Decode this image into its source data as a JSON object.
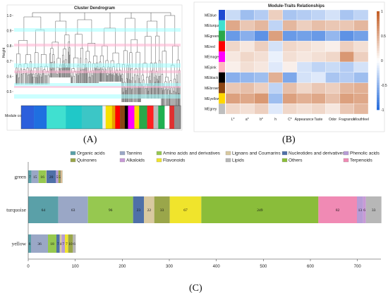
{
  "panels": {
    "a_label": "(A)",
    "b_label": "(B)",
    "c_label": "(C)"
  },
  "dendrogram": {
    "title": "Cluster Dendrogram",
    "ylabel": "Height",
    "yticks": [
      "1.0",
      "0.9",
      "0.8",
      "0.7",
      "0.6",
      "0.5"
    ],
    "colors_label": "Module colors",
    "color_bar": [
      {
        "color": "#2c5fdc",
        "w": 0.08
      },
      {
        "color": "#1f6fe0",
        "w": 0.08
      },
      {
        "color": "#40e0d0",
        "w": 0.12
      },
      {
        "color": "#20c8c8",
        "w": 0.1
      },
      {
        "color": "#3cc6c6",
        "w": 0.13
      },
      {
        "color": "#eeeeee",
        "w": 0.02
      },
      {
        "color": "#f6e000",
        "w": 0.04
      },
      {
        "color": "#e8a000",
        "w": 0.02
      },
      {
        "color": "#ff0000",
        "w": 0.03
      },
      {
        "color": "#8b4513",
        "w": 0.03
      },
      {
        "color": "#000000",
        "w": 0.02
      },
      {
        "color": "#ff00ff",
        "w": 0.04
      },
      {
        "color": "#ffd700",
        "w": 0.03
      },
      {
        "color": "#2aa84a",
        "w": 0.05
      },
      {
        "color": "#ff2020",
        "w": 0.04
      },
      {
        "color": "#bbbbbb",
        "w": 0.03
      },
      {
        "color": "#20b050",
        "w": 0.04
      },
      {
        "color": "#ffffff",
        "w": 0.03
      },
      {
        "color": "#e03030",
        "w": 0.03
      },
      {
        "color": "#909090",
        "w": 0.04
      }
    ]
  },
  "heatmap": {
    "title": "Module-Traits Relationships",
    "rows": [
      "MEblue",
      "MEturquoise",
      "MEgreen",
      "MEred",
      "MEmagenta",
      "MEpink",
      "MEblack",
      "MEbrown",
      "MEyellow",
      "MEgrey"
    ],
    "row_colors": [
      "#1e4bd2",
      "#40e0d0",
      "#2aa84a",
      "#ff0000",
      "#ff00ff",
      "#ffb6c1",
      "#000000",
      "#8b4513",
      "#ffd700",
      "#bebebe"
    ],
    "cols": [
      "L*",
      "a*",
      "b*",
      "h",
      "C*",
      "Appearance",
      "Taste",
      "Odor",
      "Fragrance",
      "Mouthfeel"
    ],
    "values": [
      [
        -0.25,
        -0.45,
        -0.35,
        0.3,
        -0.4,
        -0.35,
        -0.3,
        -0.2,
        -0.4,
        -0.3
      ],
      [
        0.55,
        0.35,
        0.45,
        -0.3,
        0.45,
        0.3,
        0.4,
        0.35,
        0.35,
        0.45
      ],
      [
        -0.7,
        -0.55,
        -0.75,
        0.6,
        -0.7,
        -0.65,
        -0.7,
        -0.5,
        -0.75,
        -0.65
      ],
      [
        0.25,
        0.15,
        0.3,
        -0.2,
        0.25,
        0.2,
        0.15,
        0.1,
        0.3,
        0.2
      ],
      [
        0.15,
        0.25,
        0.2,
        -0.1,
        0.2,
        0.15,
        0.2,
        0.25,
        0.65,
        0.3
      ],
      [
        0.1,
        0.2,
        0.15,
        -0.15,
        0.1,
        -0.2,
        -0.3,
        -0.25,
        -0.35,
        -0.2
      ],
      [
        -0.55,
        -0.5,
        -0.45,
        0.5,
        -0.6,
        -0.2,
        -0.15,
        -0.4,
        -0.35,
        -0.45
      ],
      [
        0.35,
        0.4,
        0.3,
        -0.3,
        0.4,
        0.25,
        0.35,
        0.3,
        0.45,
        0.5
      ],
      [
        0.6,
        0.55,
        0.65,
        -0.45,
        0.6,
        0.5,
        0.55,
        0.4,
        0.6,
        0.55
      ],
      [
        0.25,
        0.2,
        0.3,
        -0.15,
        0.25,
        0.2,
        0.25,
        0.15,
        0.35,
        0.45
      ]
    ],
    "colorbar_ticks": [
      "1",
      "0.5",
      "0",
      "-0.5",
      "-1"
    ]
  },
  "chart_data": {
    "type": "bar",
    "orientation": "horizontal",
    "stacked": true,
    "categories": [
      "green",
      "turquoise",
      "yellow"
    ],
    "legend": [
      {
        "name": "Organic acids",
        "color": "#5aa0a8"
      },
      {
        "name": "Tannins",
        "color": "#9aa7c6"
      },
      {
        "name": "Amino acids and derivatives",
        "color": "#96c850"
      },
      {
        "name": "Lignans and Coumarins",
        "color": "#d9c9a0"
      },
      {
        "name": "Nucleotides and derivatives",
        "color": "#4f70a8"
      },
      {
        "name": "Phenolic acids",
        "color": "#b79cd6"
      },
      {
        "name": "Quinones",
        "color": "#9aa64a"
      },
      {
        "name": "Alkaloids",
        "color": "#c89ad6"
      },
      {
        "name": "Flavonoids",
        "color": "#f0e42c"
      },
      {
        "name": "Lipids",
        "color": "#b7b7b7"
      },
      {
        "name": "Others",
        "color": "#8abd3a"
      },
      {
        "name": "Terpenoids",
        "color": "#f08ab4"
      }
    ],
    "bars": [
      {
        "category": "green",
        "segments": [
          {
            "class": "Organic acids",
            "value": 7
          },
          {
            "class": "Tannins",
            "value": 15
          },
          {
            "class": "Amino acids and derivatives",
            "value": 16
          },
          {
            "class": "Lignans and Coumarins",
            "value": 1
          },
          {
            "class": "Nucleotides and derivatives",
            "value": 20
          },
          {
            "class": "Phenolic acids",
            "value": 5
          },
          {
            "class": "Quinones",
            "value": 5
          },
          {
            "class": "Alkaloids",
            "value": 2
          },
          {
            "class": "Flavonoids",
            "value": 1
          },
          {
            "class": "Lipids",
            "value": 1
          }
        ],
        "labels": [
          "7",
          "15",
          "16",
          "1",
          "20",
          "5",
          "5",
          "2",
          "1",
          "1"
        ]
      },
      {
        "category": "turquoise",
        "segments": [
          {
            "class": "Organic acids",
            "value": 64
          },
          {
            "class": "Tannins",
            "value": 63
          },
          {
            "class": "Amino acids and derivatives",
            "value": 96
          },
          {
            "class": "Nucleotides and derivatives",
            "value": 23
          },
          {
            "class": "Lignans and Coumarins",
            "value": 22
          },
          {
            "class": "Quinones",
            "value": 33
          },
          {
            "class": "Flavonoids",
            "value": 67
          },
          {
            "class": "Others",
            "value": 249
          },
          {
            "class": "Terpenoids",
            "value": 82
          },
          {
            "class": "Phenolic acids",
            "value": 13
          },
          {
            "class": "Alkaloids",
            "value": 6
          },
          {
            "class": "Lipids",
            "value": 33
          }
        ],
        "labels": [
          "64",
          "63",
          "96",
          "23",
          "22",
          "33",
          "67",
          "249",
          "82",
          "13",
          "6",
          "33"
        ]
      },
      {
        "category": "yellow",
        "segments": [
          {
            "class": "Organic acids",
            "value": 6
          },
          {
            "class": "Tannins",
            "value": 36
          },
          {
            "class": "Amino acids and derivatives",
            "value": 18
          },
          {
            "class": "Nucleotides and derivatives",
            "value": 7
          },
          {
            "class": "Lignans and Coumarins",
            "value": 4
          },
          {
            "class": "Phenolic acids",
            "value": 7
          },
          {
            "class": "Flavonoids",
            "value": 7
          },
          {
            "class": "Quinones",
            "value": 10
          },
          {
            "class": "Lipids",
            "value": 6
          }
        ],
        "labels": [
          "6",
          "36",
          "18",
          "7",
          "4",
          "7",
          "7",
          "10",
          "6"
        ]
      }
    ],
    "xlim": [
      0,
      750
    ],
    "xticks": [
      0,
      100,
      200,
      300,
      400,
      500,
      600,
      700
    ]
  }
}
